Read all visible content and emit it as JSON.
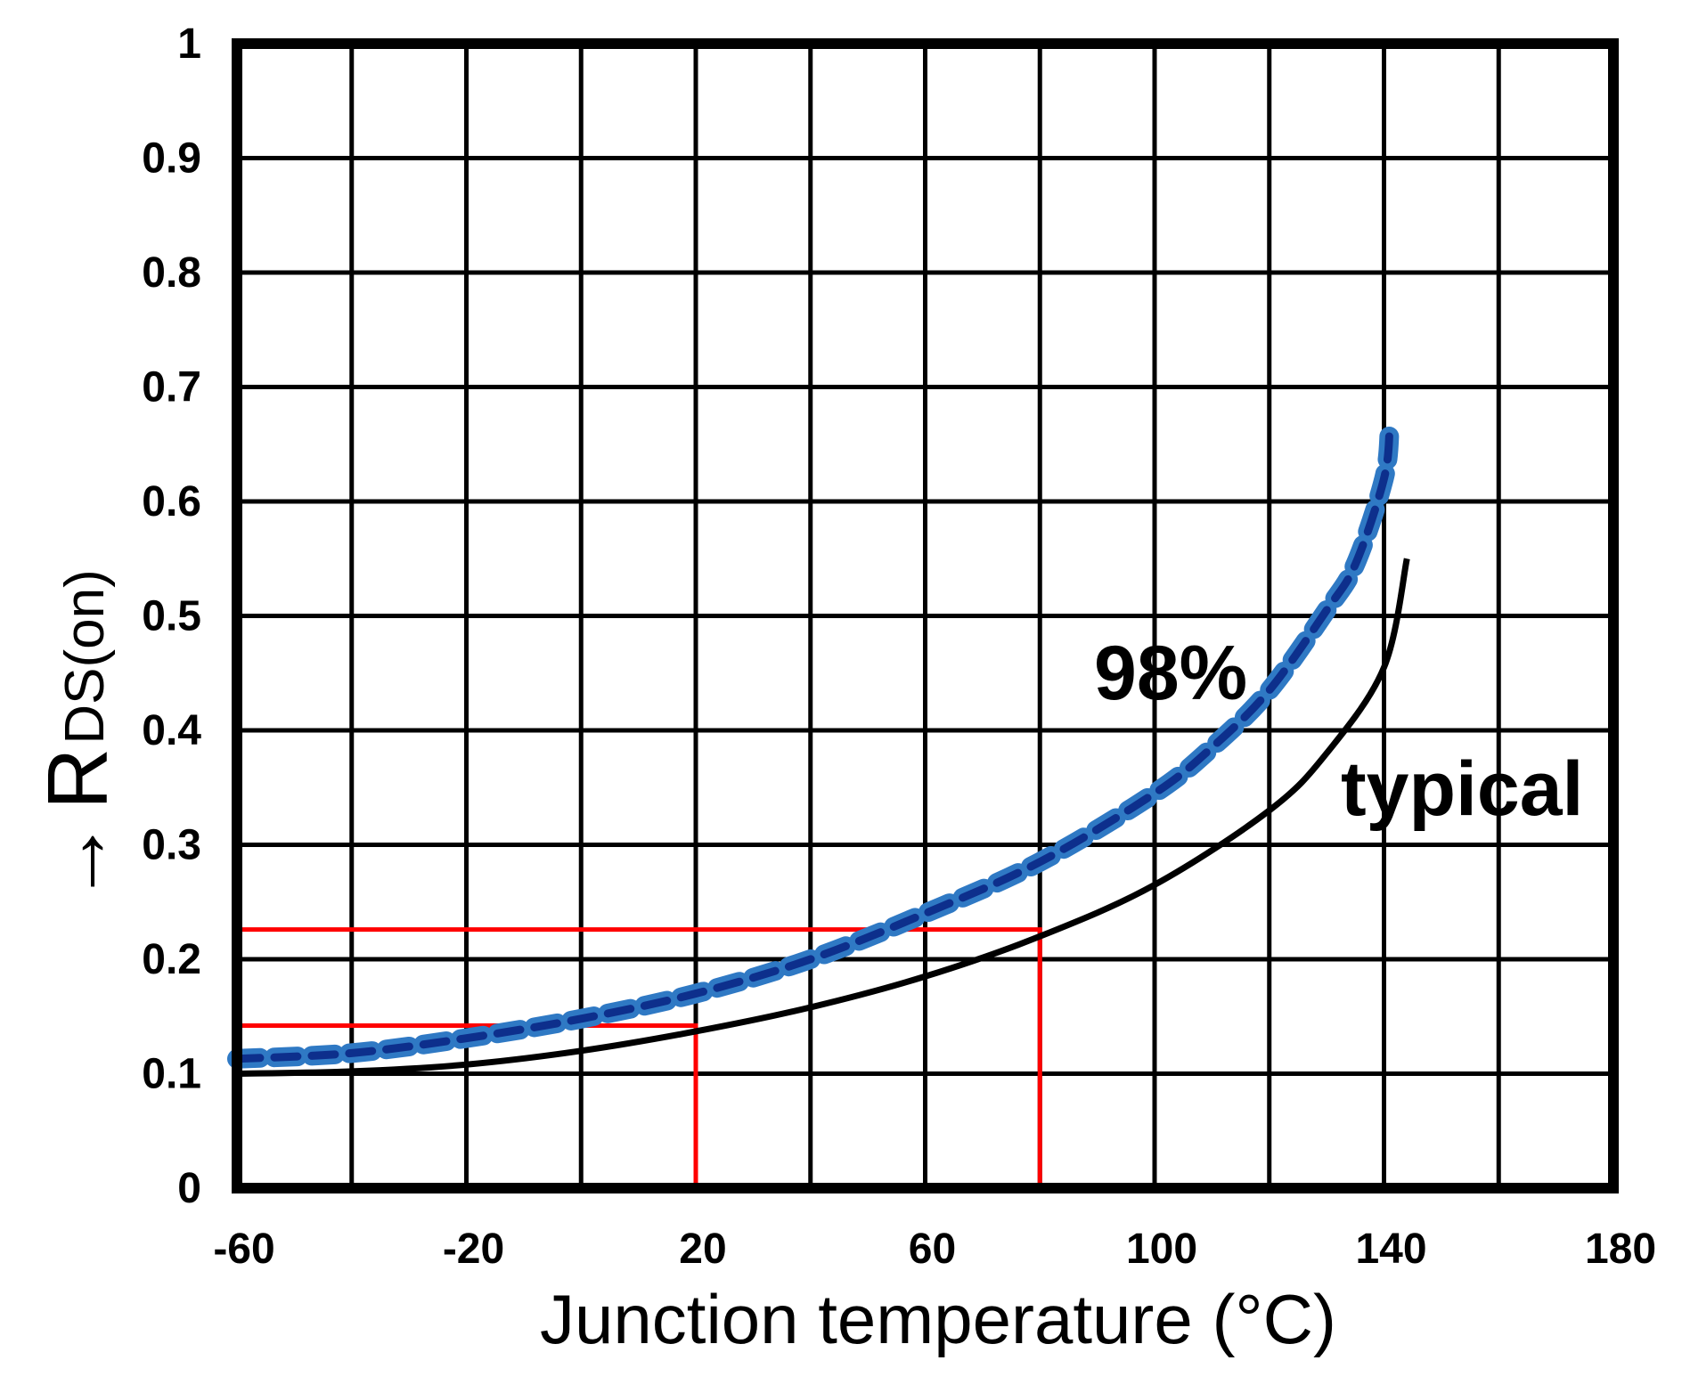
{
  "chart_data": {
    "type": "line",
    "xlabel": "Junction temperature (°C)",
    "ylabel": {
      "arrow": "→",
      "main": "R",
      "subscript": "DS(on)"
    },
    "xlim": [
      -60,
      180
    ],
    "ylim": [
      0,
      1
    ],
    "xticks": [
      -60,
      -20,
      20,
      60,
      100,
      140,
      180
    ],
    "xtick_labels": [
      "-60",
      "-20",
      "20",
      "60",
      "100",
      "140",
      "180"
    ],
    "yticks": [
      0,
      0.1,
      0.2,
      0.3,
      0.4,
      0.5,
      0.6,
      0.7,
      0.8,
      0.9,
      1
    ],
    "ytick_labels": [
      "0",
      "0.1",
      "0.2",
      "0.3",
      "0.4",
      "0.5",
      "0.6",
      "0.7",
      "0.8",
      "0.9",
      "1"
    ],
    "grid": true,
    "series": [
      {
        "name": "typical",
        "style": "solid",
        "color": "#000000",
        "x": [
          -60,
          -40,
          -20,
          0,
          20,
          40,
          60,
          80,
          100,
          120,
          130,
          140,
          144
        ],
        "y": [
          0.1,
          0.102,
          0.108,
          0.12,
          0.137,
          0.158,
          0.185,
          0.22,
          0.265,
          0.33,
          0.38,
          0.455,
          0.55
        ]
      },
      {
        "name": "98%",
        "style": "dashed",
        "color": "#0d2f8c",
        "outline_color": "#2f79c4",
        "x": [
          -60,
          -40,
          -20,
          0,
          20,
          40,
          60,
          80,
          100,
          110,
          120,
          130,
          135,
          140,
          141
        ],
        "y": [
          0.113,
          0.118,
          0.131,
          0.148,
          0.17,
          0.2,
          0.24,
          0.285,
          0.345,
          0.385,
          0.435,
          0.505,
          0.545,
          0.62,
          0.665
        ]
      }
    ],
    "reference_lines": [
      {
        "color": "#ff0000",
        "x": 20,
        "y": 0.142
      },
      {
        "color": "#ff0000",
        "x": 80,
        "y": 0.226
      }
    ]
  }
}
